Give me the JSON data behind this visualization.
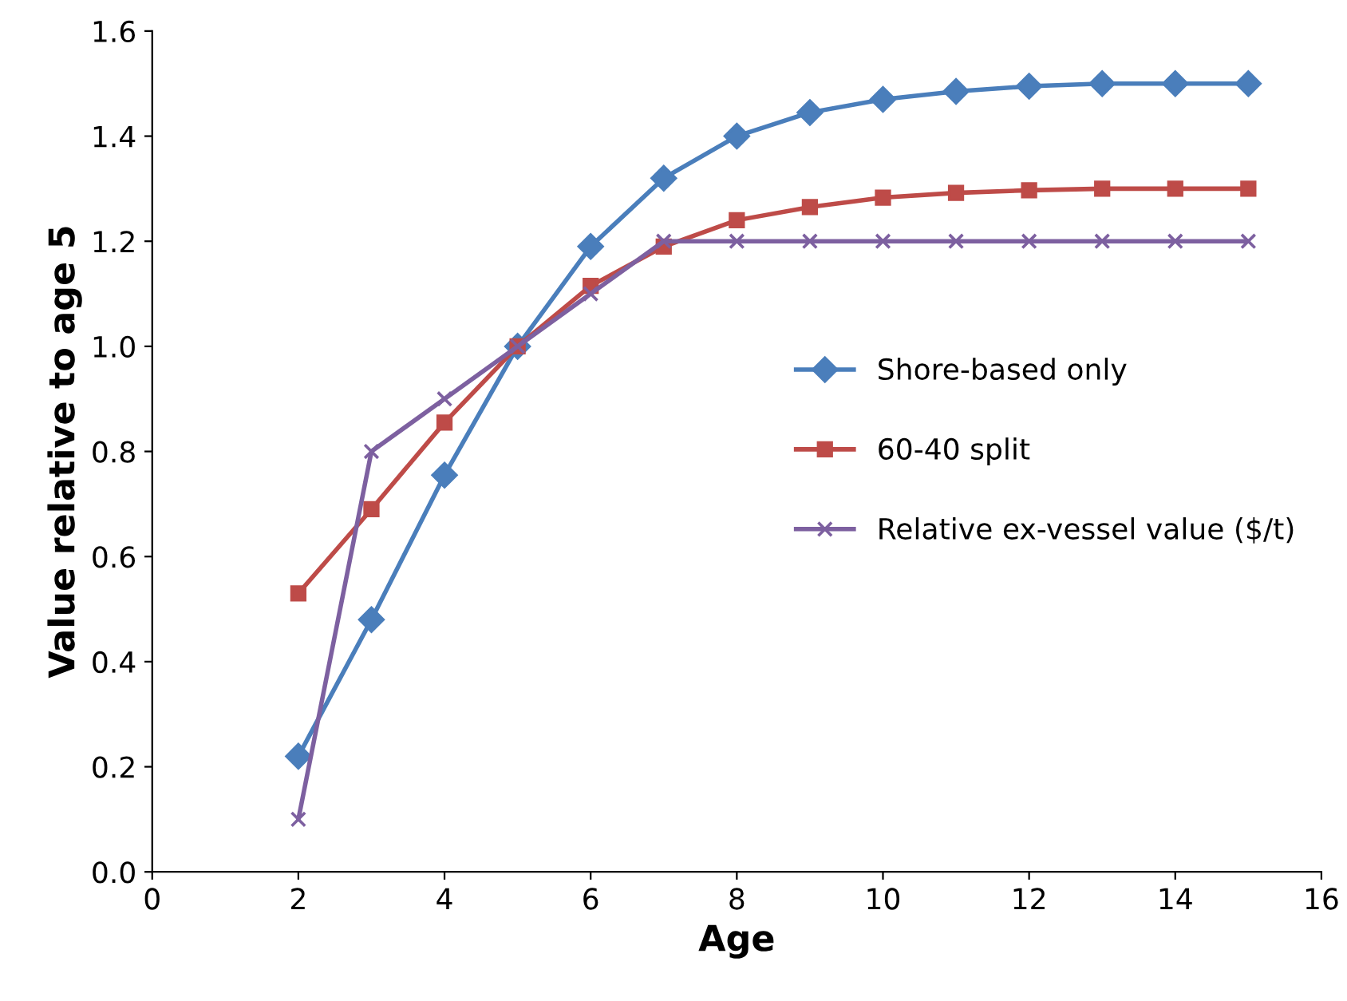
{
  "chart_data": {
    "type": "line",
    "xlabel": "Age",
    "ylabel": "Value relative to age 5",
    "x": [
      2,
      3,
      4,
      5,
      6,
      7,
      8,
      9,
      10,
      11,
      12,
      13,
      14,
      15
    ],
    "series": [
      {
        "name": "Shore-based only",
        "color": "#4a7ebb",
        "marker": "diamond",
        "values": [
          0.22,
          0.48,
          0.755,
          1.0,
          1.19,
          1.32,
          1.4,
          1.445,
          1.47,
          1.485,
          1.495,
          1.5,
          1.5,
          1.5
        ]
      },
      {
        "name": "60-40 split",
        "color": "#be4b48",
        "marker": "square",
        "values": [
          0.53,
          0.69,
          0.855,
          1.0,
          1.115,
          1.19,
          1.24,
          1.265,
          1.283,
          1.292,
          1.297,
          1.3,
          1.3,
          1.3
        ]
      },
      {
        "name": "Relative ex-vessel value ($/t)",
        "color": "#7d60a0",
        "marker": "cross",
        "values": [
          0.1,
          0.8,
          0.9,
          1.0,
          1.1,
          1.2,
          1.2,
          1.2,
          1.2,
          1.2,
          1.2,
          1.2,
          1.2,
          1.2
        ]
      }
    ],
    "xlim": [
      0,
      16
    ],
    "xticks": [
      0,
      2,
      4,
      6,
      8,
      10,
      12,
      14,
      16
    ],
    "ylim": [
      0,
      1.6
    ],
    "yticks": [
      {
        "value": 0,
        "label": "0.0"
      },
      {
        "value": 0.2,
        "label": "0.2"
      },
      {
        "value": 0.4,
        "label": "0.4"
      },
      {
        "value": 0.6,
        "label": "0.6"
      },
      {
        "value": 0.8,
        "label": "0.8"
      },
      {
        "value": 1.0,
        "label": "1.0"
      },
      {
        "value": 1.2,
        "label": "1.2"
      },
      {
        "value": 1.4,
        "label": "1.4"
      },
      {
        "value": 1.6,
        "label": "1.6"
      }
    ],
    "grid": false,
    "legend": "right"
  }
}
